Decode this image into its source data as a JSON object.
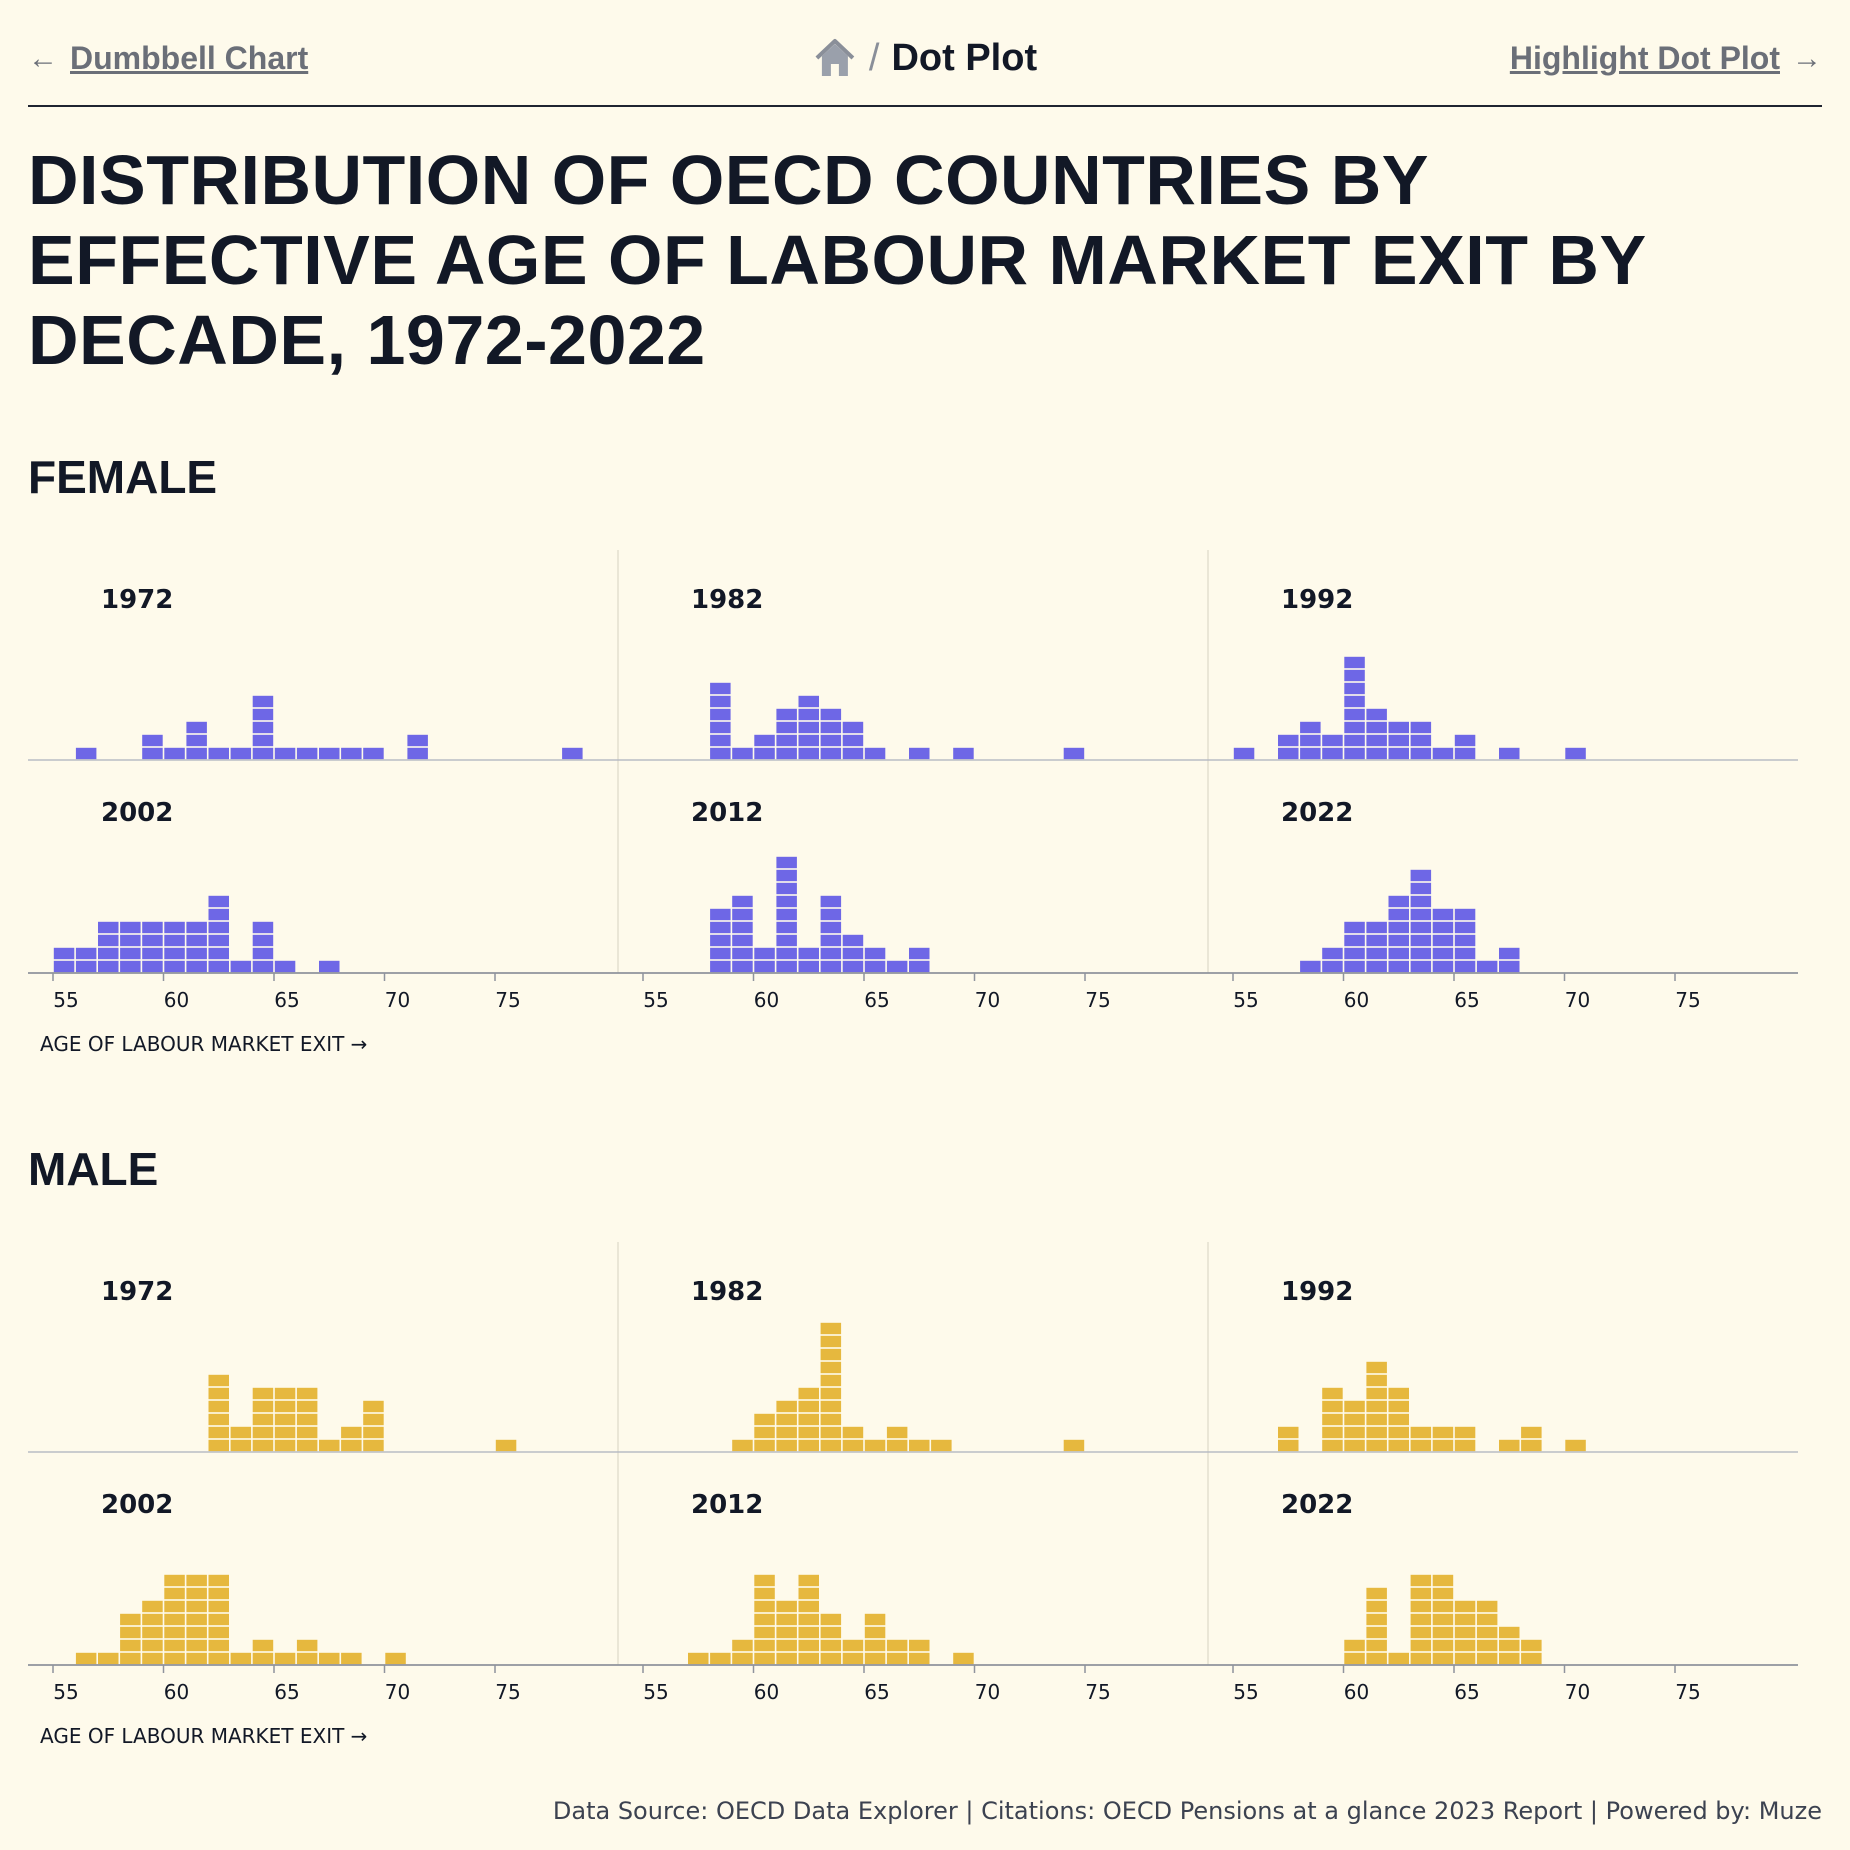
{
  "nav": {
    "prev_label": "Dumbbell Chart",
    "current_label": "Dot Plot",
    "separator": "/",
    "next_label": "Highlight Dot Plot",
    "prev_arrow": "←",
    "next_arrow": "→",
    "home_icon": "home-icon"
  },
  "page_title": "DISTRIBUTION OF OECD COUNTRIES BY EFFECTIVE AGE OF LABOUR MARKET EXIT BY DECADE, 1972-2022",
  "footer": "Data Source: OECD Data Explorer | Citations: OECD Pensions at a glance 2023 Report | Powered by: Muze",
  "colors": {
    "female": "#6e67e6",
    "male": "#e6b83e",
    "axis": "#8f939c",
    "divider": "#e3dfd0"
  },
  "chart_data": [
    {
      "type": "dot-histogram",
      "title": "FEMALE",
      "xlabel": "AGE OF LABOUR MARKET EXIT →",
      "xticks": [
        55,
        60,
        65,
        70,
        75
      ],
      "xlim": [
        54.5,
        80
      ],
      "panels": [
        {
          "year": "1972",
          "bins": [
            [
              56,
              1
            ],
            [
              59,
              2
            ],
            [
              60,
              1
            ],
            [
              61,
              3
            ],
            [
              62,
              1
            ],
            [
              63,
              1
            ],
            [
              64,
              5
            ],
            [
              65,
              1
            ],
            [
              66,
              1
            ],
            [
              67,
              1
            ],
            [
              68,
              1
            ],
            [
              69,
              1
            ],
            [
              71,
              2
            ],
            [
              78,
              1
            ]
          ]
        },
        {
          "year": "1982",
          "bins": [
            [
              58,
              6
            ],
            [
              59,
              1
            ],
            [
              60,
              2
            ],
            [
              61,
              4
            ],
            [
              62,
              5
            ],
            [
              63,
              4
            ],
            [
              64,
              3
            ],
            [
              65,
              1
            ],
            [
              67,
              1
            ],
            [
              69,
              1
            ],
            [
              74,
              1
            ]
          ]
        },
        {
          "year": "1992",
          "bins": [
            [
              55,
              1
            ],
            [
              57,
              2
            ],
            [
              58,
              3
            ],
            [
              59,
              2
            ],
            [
              60,
              8
            ],
            [
              61,
              4
            ],
            [
              62,
              3
            ],
            [
              63,
              3
            ],
            [
              64,
              1
            ],
            [
              65,
              2
            ],
            [
              67,
              1
            ],
            [
              70,
              1
            ]
          ]
        },
        {
          "year": "2002",
          "bins": [
            [
              55,
              2
            ],
            [
              56,
              2
            ],
            [
              57,
              4
            ],
            [
              58,
              4
            ],
            [
              59,
              4
            ],
            [
              60,
              4
            ],
            [
              61,
              4
            ],
            [
              62,
              6
            ],
            [
              63,
              1
            ],
            [
              64,
              4
            ],
            [
              65,
              1
            ],
            [
              67,
              1
            ]
          ]
        },
        {
          "year": "2012",
          "bins": [
            [
              58,
              5
            ],
            [
              59,
              6
            ],
            [
              60,
              2
            ],
            [
              61,
              9
            ],
            [
              62,
              2
            ],
            [
              63,
              6
            ],
            [
              64,
              3
            ],
            [
              65,
              2
            ],
            [
              66,
              1
            ],
            [
              67,
              2
            ]
          ]
        },
        {
          "year": "2022",
          "bins": [
            [
              58,
              1
            ],
            [
              59,
              2
            ],
            [
              60,
              4
            ],
            [
              61,
              4
            ],
            [
              62,
              6
            ],
            [
              63,
              8
            ],
            [
              64,
              5
            ],
            [
              65,
              5
            ],
            [
              66,
              1
            ],
            [
              67,
              2
            ]
          ]
        }
      ]
    },
    {
      "type": "dot-histogram",
      "title": "MALE",
      "xlabel": "AGE OF LABOUR MARKET EXIT →",
      "xticks": [
        55,
        60,
        65,
        70,
        75
      ],
      "xlim": [
        54.5,
        80
      ],
      "panels": [
        {
          "year": "1972",
          "bins": [
            [
              62,
              6
            ],
            [
              63,
              2
            ],
            [
              64,
              5
            ],
            [
              65,
              5
            ],
            [
              66,
              5
            ],
            [
              67,
              1
            ],
            [
              68,
              2
            ],
            [
              69,
              4
            ],
            [
              75,
              1
            ]
          ]
        },
        {
          "year": "1982",
          "bins": [
            [
              59,
              1
            ],
            [
              60,
              3
            ],
            [
              61,
              4
            ],
            [
              62,
              5
            ],
            [
              63,
              10
            ],
            [
              64,
              2
            ],
            [
              65,
              1
            ],
            [
              66,
              2
            ],
            [
              67,
              1
            ],
            [
              68,
              1
            ],
            [
              74,
              1
            ]
          ]
        },
        {
          "year": "1992",
          "bins": [
            [
              57,
              2
            ],
            [
              59,
              5
            ],
            [
              60,
              4
            ],
            [
              61,
              7
            ],
            [
              62,
              5
            ],
            [
              63,
              2
            ],
            [
              64,
              2
            ],
            [
              65,
              2
            ],
            [
              67,
              1
            ],
            [
              68,
              2
            ],
            [
              70,
              1
            ]
          ]
        },
        {
          "year": "2002",
          "bins": [
            [
              56,
              1
            ],
            [
              57,
              1
            ],
            [
              58,
              4
            ],
            [
              59,
              5
            ],
            [
              60,
              7
            ],
            [
              61,
              7
            ],
            [
              62,
              7
            ],
            [
              63,
              1
            ],
            [
              64,
              2
            ],
            [
              65,
              1
            ],
            [
              66,
              2
            ],
            [
              67,
              1
            ],
            [
              68,
              1
            ],
            [
              70,
              1
            ]
          ]
        },
        {
          "year": "2012",
          "bins": [
            [
              57,
              1
            ],
            [
              58,
              1
            ],
            [
              59,
              2
            ],
            [
              60,
              7
            ],
            [
              61,
              5
            ],
            [
              62,
              7
            ],
            [
              63,
              4
            ],
            [
              64,
              2
            ],
            [
              65,
              4
            ],
            [
              66,
              2
            ],
            [
              67,
              2
            ],
            [
              69,
              1
            ]
          ]
        },
        {
          "year": "2022",
          "bins": [
            [
              60,
              2
            ],
            [
              61,
              6
            ],
            [
              62,
              1
            ],
            [
              63,
              7
            ],
            [
              64,
              7
            ],
            [
              65,
              5
            ],
            [
              66,
              5
            ],
            [
              67,
              3
            ],
            [
              68,
              2
            ]
          ]
        }
      ]
    }
  ]
}
